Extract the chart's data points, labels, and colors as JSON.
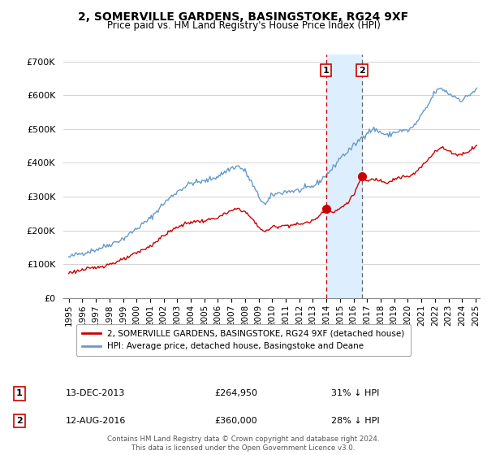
{
  "title": "2, SOMERVILLE GARDENS, BASINGSTOKE, RG24 9XF",
  "subtitle": "Price paid vs. HM Land Registry's House Price Index (HPI)",
  "legend_label_red": "2, SOMERVILLE GARDENS, BASINGSTOKE, RG24 9XF (detached house)",
  "legend_label_blue": "HPI: Average price, detached house, Basingstoke and Deane",
  "footer": "Contains HM Land Registry data © Crown copyright and database right 2024.\nThis data is licensed under the Open Government Licence v3.0.",
  "transaction1_date": "13-DEC-2013",
  "transaction1_price": "£264,950",
  "transaction1_hpi": "31% ↓ HPI",
  "transaction2_date": "12-AUG-2016",
  "transaction2_price": "£360,000",
  "transaction2_hpi": "28% ↓ HPI",
  "ylim": [
    0,
    720000
  ],
  "yticks": [
    0,
    100000,
    200000,
    300000,
    400000,
    500000,
    600000,
    700000
  ],
  "ytick_labels": [
    "£0",
    "£100K",
    "£200K",
    "£300K",
    "£400K",
    "£500K",
    "£600K",
    "£700K"
  ],
  "color_red": "#cc0000",
  "color_blue": "#6699cc",
  "color_vline1": "#cc0000",
  "color_vline2": "#666666",
  "shade_color": "#ddeeff",
  "bg_color": "#ffffff",
  "grid_color": "#cccccc",
  "transaction1_x": 2013.96,
  "transaction2_x": 2016.62,
  "transaction1_y": 264950,
  "transaction2_y": 360000,
  "xlim_left": 1994.6,
  "xlim_right": 2025.3
}
